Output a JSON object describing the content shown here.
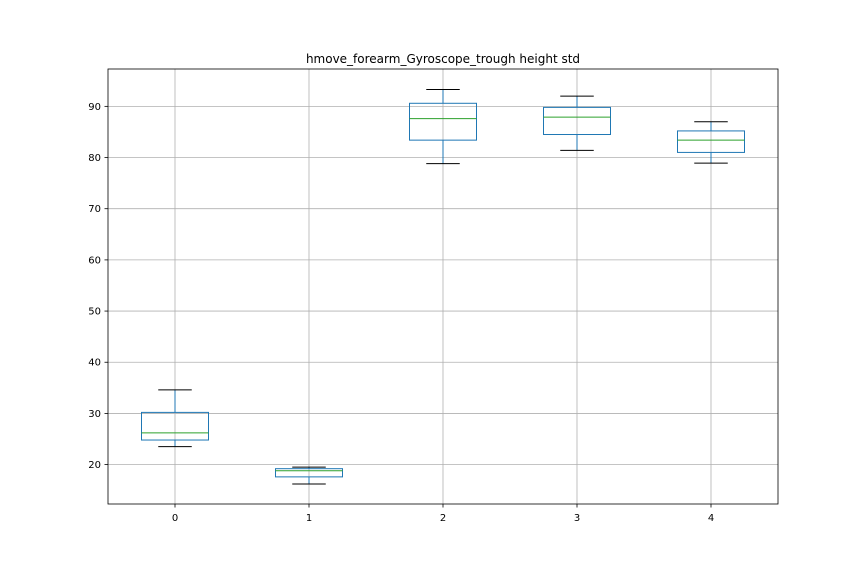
{
  "chart_data": {
    "type": "box",
    "title": "hmove_forearm_Gyroscope_trough height std",
    "xlabel": "",
    "ylabel": "",
    "categories": [
      "0",
      "1",
      "2",
      "3",
      "4"
    ],
    "ylim": [
      12.3,
      97.3
    ],
    "yticks": [
      20,
      30,
      40,
      50,
      60,
      70,
      80,
      90
    ],
    "grid": true,
    "boxes": [
      {
        "whisker_low": 23.5,
        "q1": 24.8,
        "median": 26.2,
        "q3": 30.2,
        "whisker_high": 34.6
      },
      {
        "whisker_low": 16.2,
        "q1": 17.6,
        "median": 18.8,
        "q3": 19.2,
        "whisker_high": 19.5
      },
      {
        "whisker_low": 78.8,
        "q1": 83.4,
        "median": 87.6,
        "q3": 90.6,
        "whisker_high": 93.3
      },
      {
        "whisker_low": 81.4,
        "q1": 84.5,
        "median": 87.9,
        "q3": 89.8,
        "whisker_high": 92.0
      },
      {
        "whisker_low": 78.9,
        "q1": 81.0,
        "median": 83.4,
        "q3": 85.2,
        "whisker_high": 87.0
      }
    ],
    "colors": {
      "box": "#1f77b4",
      "median": "#2ca02c",
      "whisker": "#1f77b4",
      "cap": "#000000",
      "grid": "#b0b0b0"
    }
  }
}
